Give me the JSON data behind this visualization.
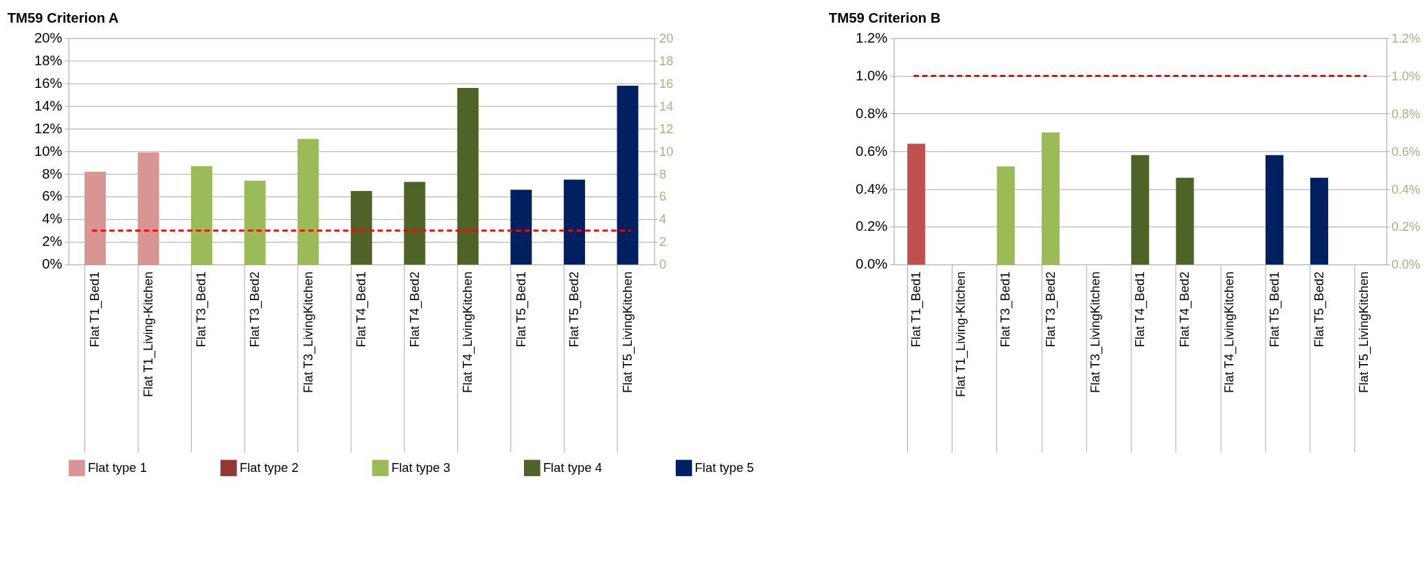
{
  "chart_data": [
    {
      "type": "bar",
      "title": "TM59 Criterion A",
      "categories": [
        "Flat T1_Bed1",
        "Flat T1_Living-Kitchen",
        "Flat T3_Bed1",
        "Flat T3_Bed2",
        "Flat T3_LivingKitchen",
        "Flat T4_Bed1",
        "Flat T4_Bed2",
        "Flat T4_LivingKitchen",
        "Flat T5_Bed1",
        "Flat T5_Bed2",
        "Flat T5_LivingKitchen"
      ],
      "series": [
        {
          "name": "Flat type 1",
          "color": "#d99594",
          "values": [
            8.2,
            9.9,
            null,
            null,
            null,
            null,
            null,
            null,
            null,
            null,
            null
          ]
        },
        {
          "name": "Flat type 2",
          "color": "#953735",
          "values": [
            null,
            null,
            null,
            null,
            null,
            null,
            null,
            null,
            null,
            null,
            null
          ]
        },
        {
          "name": "Flat type 3",
          "color": "#9bbb59",
          "values": [
            null,
            null,
            8.7,
            7.4,
            11.1,
            null,
            null,
            null,
            null,
            null,
            null
          ]
        },
        {
          "name": "Flat type 4",
          "color": "#4f6228",
          "values": [
            null,
            null,
            null,
            null,
            null,
            6.5,
            7.3,
            15.6,
            null,
            null,
            null
          ]
        },
        {
          "name": "Flat type 5",
          "color": "#002060",
          "values": [
            null,
            null,
            null,
            null,
            null,
            null,
            null,
            null,
            6.6,
            7.5,
            15.8
          ]
        }
      ],
      "ylim": [
        0,
        20
      ],
      "yticks": [
        {
          "value": 0,
          "label": "0%"
        },
        {
          "value": 2,
          "label": "2%"
        },
        {
          "value": 4,
          "label": "4%"
        },
        {
          "value": 6,
          "label": "6%"
        },
        {
          "value": 8,
          "label": "8%"
        },
        {
          "value": 10,
          "label": "10%"
        },
        {
          "value": 12,
          "label": "12%"
        },
        {
          "value": 14,
          "label": "14%"
        },
        {
          "value": 16,
          "label": "16%"
        },
        {
          "value": 18,
          "label": "18%"
        },
        {
          "value": 20,
          "label": "20%"
        }
      ],
      "y2lim": [
        0,
        20
      ],
      "y2ticks": [
        0,
        2,
        4,
        6,
        8,
        10,
        12,
        14,
        16,
        18,
        20
      ],
      "ref_lines": [
        {
          "axis": "y",
          "value": 3,
          "color": "#ff0000",
          "line_style": "dashed"
        }
      ],
      "grid": "y",
      "legend": "bottom"
    },
    {
      "type": "bar",
      "title": "TM59 Criterion B",
      "categories": [
        "Flat T1_Bed1",
        "Flat T1_Living-Kitchen",
        "Flat T3_Bed1",
        "Flat T3_Bed2",
        "Flat T3_LivingKitchen",
        "Flat T4_Bed1",
        "Flat T4_Bed2",
        "Flat T4_LivingKitchen",
        "Flat T5_Bed1",
        "Flat T5_Bed2",
        "Flat T5_LivingKitchen"
      ],
      "values": [
        0.64,
        null,
        0.52,
        0.7,
        null,
        0.58,
        0.46,
        null,
        0.58,
        0.46,
        null
      ],
      "colors": [
        "#c0504d",
        null,
        "#9bbb59",
        "#9bbb59",
        null,
        "#4f6228",
        "#4f6228",
        null,
        "#002060",
        "#002060",
        null
      ],
      "ylim": [
        0,
        1.2
      ],
      "yticks": [
        {
          "value": 0,
          "label": "0.0%"
        },
        {
          "value": 0.2,
          "label": "0.2%"
        },
        {
          "value": 0.4,
          "label": "0.4%"
        },
        {
          "value": 0.6,
          "label": "0.6%"
        },
        {
          "value": 0.8,
          "label": "0.8%"
        },
        {
          "value": 1.0,
          "label": "1.0%"
        },
        {
          "value": 1.2,
          "label": "1.2%"
        }
      ],
      "y2lim": [
        0,
        1.2
      ],
      "y2ticks": [
        {
          "value": 0,
          "label": "0.0%"
        },
        {
          "value": 0.2,
          "label": "0.2%"
        },
        {
          "value": 0.4,
          "label": "0.4%"
        },
        {
          "value": 0.6,
          "label": "0.6%"
        },
        {
          "value": 0.8,
          "label": "0.8%"
        },
        {
          "value": 1.0,
          "label": "1.0%"
        },
        {
          "value": 1.2,
          "label": "1.2%"
        }
      ],
      "ref_lines": [
        {
          "axis": "y",
          "value": 1.0,
          "color": "#ff0000",
          "line_style": "dashed"
        }
      ],
      "grid": "y",
      "legend": false
    }
  ]
}
